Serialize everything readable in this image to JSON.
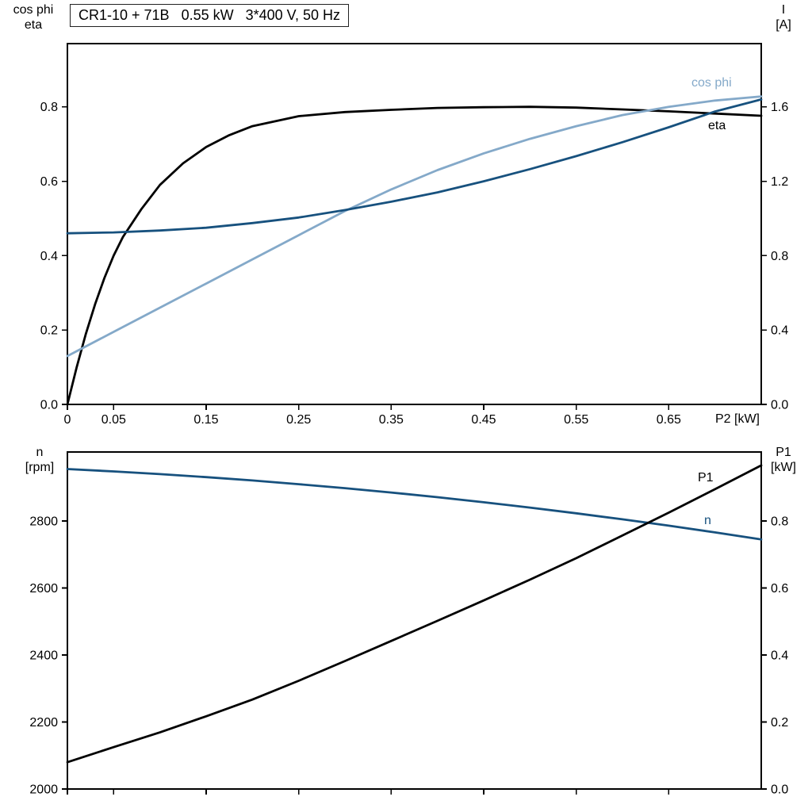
{
  "title": "CR1-10 + 71B   0.55 kW   3*400 V, 50 Hz",
  "colors": {
    "black": "#000000",
    "dark_blue": "#17517e",
    "light_blue": "#84a9c9"
  },
  "axes_labels": {
    "top_left": {
      "line1": "cos phi",
      "line2": "eta"
    },
    "top_right": {
      "line1": "I",
      "line2": "[A]"
    },
    "top_x": "P2 [kW]",
    "bottom_left": {
      "line1": "n",
      "line2": "[rpm]"
    },
    "bottom_right": {
      "line1": "P1",
      "line2": "[kW]"
    }
  },
  "curve_labels": {
    "cos_phi": "cos phi",
    "eta": "eta",
    "p1": "P1",
    "n": "n"
  },
  "chart_data": [
    {
      "id": "motor-curves",
      "type": "line",
      "title": "CR1-10 + 71B 0.55 kW 3*400 V, 50 Hz",
      "xlabel": "P2 [kW]",
      "xlim": [
        0,
        0.75
      ],
      "x_ticks": [
        0,
        0.05,
        0.15,
        0.25,
        0.35,
        0.45,
        0.55,
        0.65
      ],
      "x_tick_labels": [
        "0",
        "0.05",
        "0.15",
        "0.25",
        "0.35",
        "0.45",
        "0.55",
        "0.65"
      ],
      "left_axis": {
        "label": "cos phi / eta",
        "lim": [
          0,
          0.97
        ],
        "ticks": [
          0,
          0.2,
          0.4,
          0.6,
          0.8
        ],
        "tick_labels": [
          "0.0",
          "0.2",
          "0.4",
          "0.6",
          "0.8"
        ]
      },
      "right_axis": {
        "label": "I [A]",
        "lim": [
          0,
          1.94
        ],
        "ticks": [
          0,
          0.4,
          0.8,
          1.2,
          1.6
        ],
        "tick_labels": [
          "0.0",
          "0.4",
          "0.8",
          "1.2",
          "1.6"
        ]
      },
      "grid": false,
      "series": [
        {
          "name": "eta",
          "axis": "left",
          "color_key": "black",
          "x": [
            0,
            0.01,
            0.02,
            0.03,
            0.04,
            0.05,
            0.06,
            0.08,
            0.1,
            0.125,
            0.15,
            0.175,
            0.2,
            0.25,
            0.3,
            0.35,
            0.4,
            0.45,
            0.5,
            0.55,
            0.6,
            0.65,
            0.7,
            0.75
          ],
          "y": [
            0,
            0.1,
            0.19,
            0.27,
            0.34,
            0.4,
            0.45,
            0.525,
            0.59,
            0.648,
            0.692,
            0.724,
            0.748,
            0.775,
            0.786,
            0.792,
            0.797,
            0.799,
            0.8,
            0.798,
            0.793,
            0.788,
            0.782,
            0.776
          ]
        },
        {
          "name": "cos phi",
          "axis": "left",
          "color_key": "light_blue",
          "x": [
            0,
            0.05,
            0.1,
            0.15,
            0.2,
            0.25,
            0.3,
            0.35,
            0.4,
            0.45,
            0.5,
            0.55,
            0.6,
            0.65,
            0.7,
            0.75
          ],
          "y": [
            0.13,
            0.195,
            0.26,
            0.325,
            0.39,
            0.455,
            0.52,
            0.578,
            0.63,
            0.675,
            0.714,
            0.748,
            0.778,
            0.8,
            0.817,
            0.828
          ]
        },
        {
          "name": "I",
          "axis": "right",
          "color_key": "dark_blue",
          "x": [
            0,
            0.05,
            0.1,
            0.15,
            0.2,
            0.25,
            0.3,
            0.35,
            0.4,
            0.45,
            0.5,
            0.55,
            0.6,
            0.65,
            0.7,
            0.75
          ],
          "y": [
            0.92,
            0.925,
            0.935,
            0.95,
            0.975,
            1.005,
            1.045,
            1.09,
            1.14,
            1.2,
            1.265,
            1.335,
            1.41,
            1.49,
            1.575,
            1.64
          ]
        }
      ]
    },
    {
      "id": "speed-power",
      "type": "line",
      "title": "",
      "xlabel": "",
      "xlim": [
        0,
        0.75
      ],
      "x_ticks": [
        0,
        0.05,
        0.15,
        0.25,
        0.35,
        0.45,
        0.55,
        0.65
      ],
      "x_tick_labels": [],
      "left_axis": {
        "label": "n [rpm]",
        "lim": [
          2000,
          3006
        ],
        "ticks": [
          2000,
          2200,
          2400,
          2600,
          2800
        ],
        "tick_labels": [
          "2000",
          "2200",
          "2400",
          "2600",
          "2800"
        ]
      },
      "right_axis": {
        "label": "P1 [kW]",
        "lim": [
          0,
          1.006
        ],
        "ticks": [
          0,
          0.2,
          0.4,
          0.6,
          0.8
        ],
        "tick_labels": [
          "0.0",
          "0.2",
          "0.4",
          "0.6",
          "0.8"
        ]
      },
      "grid": false,
      "series": [
        {
          "name": "n",
          "axis": "left",
          "color_key": "dark_blue",
          "x": [
            0,
            0.05,
            0.1,
            0.15,
            0.2,
            0.25,
            0.3,
            0.35,
            0.4,
            0.45,
            0.5,
            0.55,
            0.6,
            0.65,
            0.7,
            0.75
          ],
          "y": [
            2955,
            2948,
            2940,
            2931,
            2921,
            2910,
            2898,
            2885,
            2871,
            2856,
            2840,
            2823,
            2805,
            2786,
            2766,
            2745
          ]
        },
        {
          "name": "P1",
          "axis": "right",
          "color_key": "black",
          "x": [
            0,
            0.05,
            0.1,
            0.15,
            0.2,
            0.25,
            0.3,
            0.35,
            0.4,
            0.45,
            0.5,
            0.55,
            0.6,
            0.65,
            0.7,
            0.75
          ],
          "y": [
            0.08,
            0.125,
            0.169,
            0.217,
            0.267,
            0.323,
            0.382,
            0.442,
            0.502,
            0.563,
            0.625,
            0.689,
            0.757,
            0.825,
            0.895,
            0.966
          ]
        }
      ]
    }
  ]
}
